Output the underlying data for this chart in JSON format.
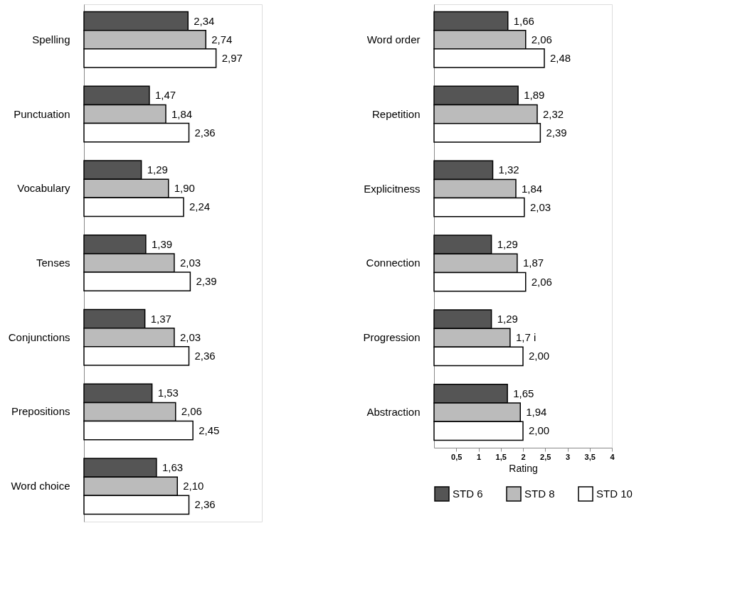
{
  "chart_data": [
    {
      "type": "bar",
      "orientation": "horizontal",
      "categories": [
        "Spelling",
        "Punctuation",
        "Vocabulary",
        "Tenses",
        "Conjunctions",
        "Prepositions",
        "Word choice"
      ],
      "xlim": [
        0,
        4
      ],
      "tick_labels": "y",
      "grid": false,
      "series": [
        {
          "color": "#555555",
          "values": [
            2.34,
            1.47,
            1.29,
            1.39,
            1.37,
            1.53,
            1.63
          ],
          "value_labels": [
            "2,34",
            "1,47",
            "1,29",
            "1,39",
            "1,37",
            "1,53",
            "1,63"
          ]
        },
        {
          "color": "#bbbbbb",
          "values": [
            2.74,
            1.84,
            1.9,
            2.03,
            2.03,
            2.06,
            2.1
          ],
          "value_labels": [
            "2,74",
            "1,84",
            "1,90",
            "2,03",
            "2,03",
            "2,06",
            "2,10"
          ]
        },
        {
          "color": "#ffffff",
          "values": [
            2.97,
            2.36,
            2.24,
            2.39,
            2.36,
            2.45,
            2.36
          ],
          "value_labels": [
            "2,97",
            "2,36",
            "2,24",
            "2,39",
            "2,36",
            "2,45",
            "2,36"
          ]
        }
      ]
    },
    {
      "type": "bar",
      "orientation": "horizontal",
      "categories": [
        "Word order",
        "Repetition",
        "Explicitness",
        "Connection",
        "Progression",
        "Abstraction"
      ],
      "xlabel": "Rating",
      "xlim": [
        0,
        4
      ],
      "xticks": [
        {
          "value": 0.5,
          "label": "0,5"
        },
        1,
        {
          "value": 1.5,
          "label": "1,5"
        },
        2,
        {
          "value": 2.5,
          "label": "2,5"
        },
        3,
        {
          "value": 3.5,
          "label": "3,5"
        },
        4
      ],
      "grid": false,
      "legend": "bottom",
      "series": [
        {
          "name": "STD 6",
          "color": "#555555",
          "values": [
            1.66,
            1.89,
            1.32,
            1.29,
            1.29,
            1.65
          ],
          "value_labels": [
            "1,66",
            "1,89",
            "1,32",
            "1,29",
            "1,29",
            "1,65"
          ]
        },
        {
          "name": "STD 8",
          "color": "#bbbbbb",
          "values": [
            2.06,
            2.32,
            1.84,
            1.87,
            1.71,
            1.94
          ],
          "value_labels": [
            "2,06",
            "2,32",
            "1,84",
            "1,87",
            "1,7 i",
            "1,94"
          ]
        },
        {
          "name": "STD 10",
          "color": "#ffffff",
          "values": [
            2.48,
            2.39,
            2.03,
            2.06,
            2.0,
            2.0
          ],
          "value_labels": [
            "2,48",
            "2,39",
            "2,03",
            "2,06",
            "2,00",
            "2,00"
          ]
        }
      ]
    }
  ]
}
